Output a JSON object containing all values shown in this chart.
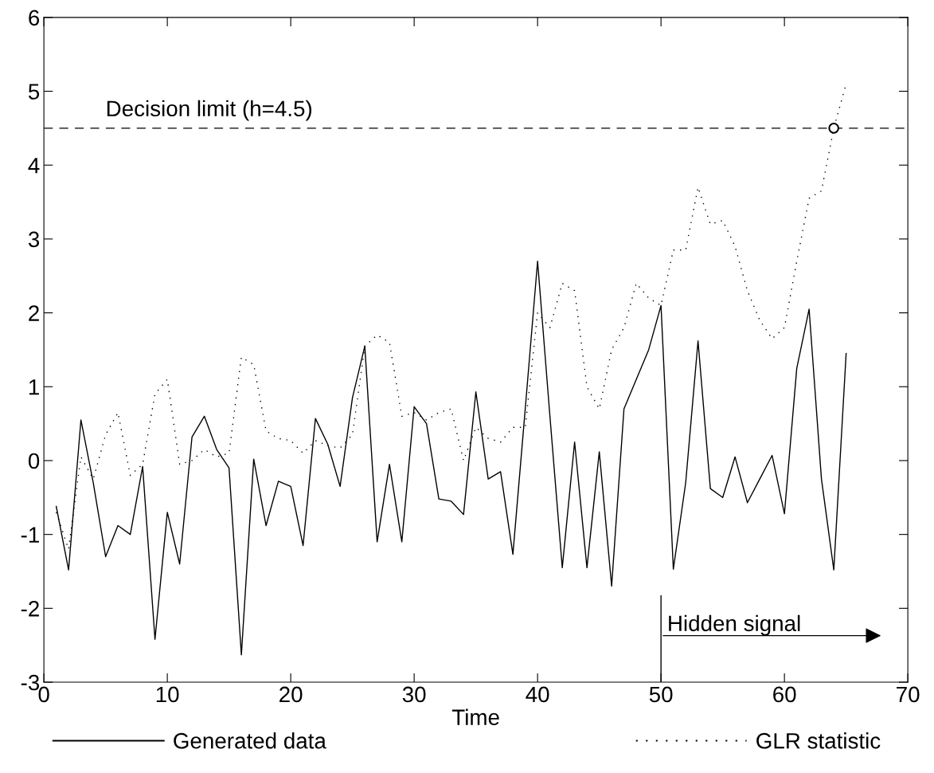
{
  "chart_data": {
    "type": "line",
    "xlabel": "Time",
    "series": [
      {
        "name": "Generated data",
        "color": "#000000",
        "line_style": "solid",
        "x": [
          1,
          2,
          3,
          4,
          5,
          6,
          7,
          8,
          9,
          10,
          11,
          12,
          13,
          14,
          15,
          16,
          17,
          18,
          19,
          20,
          21,
          22,
          23,
          24,
          25,
          26,
          27,
          28,
          29,
          30,
          31,
          32,
          33,
          34,
          35,
          36,
          37,
          38,
          39,
          40,
          41,
          42,
          43,
          44,
          45,
          46,
          47,
          48,
          49,
          50,
          51,
          52,
          53,
          54,
          55,
          56,
          57,
          58,
          59,
          60,
          61,
          62,
          63,
          64,
          65
        ],
        "values": [
          -0.62,
          -1.48,
          0.55,
          -0.3,
          -1.3,
          -0.88,
          -1.0,
          -0.08,
          -2.42,
          -0.7,
          -1.4,
          0.32,
          0.6,
          0.15,
          -0.1,
          -2.63,
          0.02,
          -0.88,
          -0.28,
          -0.35,
          -1.15,
          0.57,
          0.22,
          -0.35,
          0.85,
          1.55,
          -1.1,
          -0.05,
          -1.1,
          0.73,
          0.5,
          -0.52,
          -0.55,
          -0.73,
          0.93,
          -0.25,
          -0.15,
          -1.27,
          0.7,
          2.7,
          0.6,
          -1.45,
          0.25,
          -1.45,
          0.12,
          -1.7,
          0.7,
          1.1,
          1.5,
          2.1,
          -1.47,
          -0.3,
          1.62,
          -0.38,
          -0.5,
          0.05,
          -0.57,
          -0.25,
          0.07,
          -0.72,
          1.25,
          2.05,
          -0.25,
          -1.48,
          1.45
        ]
      },
      {
        "name": "GLR statistic",
        "color": "#000000",
        "line_style": "dotted",
        "x": [
          1,
          2,
          3,
          4,
          5,
          6,
          7,
          8,
          9,
          10,
          11,
          12,
          13,
          14,
          15,
          16,
          17,
          18,
          19,
          20,
          21,
          22,
          23,
          24,
          25,
          26,
          27,
          28,
          29,
          30,
          31,
          32,
          33,
          34,
          35,
          36,
          37,
          38,
          39,
          40,
          41,
          42,
          43,
          44,
          45,
          46,
          47,
          48,
          49,
          50,
          51,
          52,
          53,
          54,
          55,
          56,
          57,
          58,
          59,
          60,
          61,
          62,
          63,
          64,
          65
        ],
        "values": [
          -0.7,
          -1.2,
          0.05,
          -0.25,
          0.35,
          0.65,
          -0.2,
          -0.05,
          0.9,
          1.1,
          -0.05,
          0.0,
          0.15,
          0.05,
          0.1,
          1.4,
          1.3,
          0.4,
          0.3,
          0.27,
          0.1,
          0.27,
          0.2,
          0.17,
          0.35,
          1.55,
          1.7,
          1.6,
          0.6,
          0.65,
          0.55,
          0.65,
          0.7,
          0.0,
          0.45,
          0.3,
          0.25,
          0.45,
          0.45,
          2.0,
          1.8,
          2.4,
          2.3,
          1.0,
          0.7,
          1.5,
          1.8,
          2.4,
          2.2,
          2.1,
          2.85,
          2.85,
          3.7,
          3.2,
          3.25,
          2.9,
          2.3,
          1.9,
          1.65,
          1.8,
          2.7,
          3.55,
          3.65,
          4.5,
          5.1
        ]
      },
      {
        "type": "scatter",
        "color": "#000000",
        "marker": "circle",
        "x": [
          64
        ],
        "values": [
          4.5
        ]
      }
    ],
    "ref_lines": [
      {
        "axis": "y",
        "value": 4.5,
        "label": "Decision limit (h=4.5)",
        "color": "#000000",
        "line_style": "dashed"
      },
      {
        "axis": "x",
        "value": 50,
        "label": "Hidden signal",
        "color": "#000000",
        "line_style": "solid"
      }
    ],
    "xlim": [
      0,
      70
    ],
    "ylim": [
      -3,
      6
    ],
    "xticks": [
      0,
      10,
      20,
      30,
      40,
      50,
      60,
      70
    ],
    "yticks": [
      -3,
      -2,
      -1,
      0,
      1,
      2,
      3,
      4,
      5,
      6
    ],
    "grid": false,
    "legend": "bottom"
  }
}
